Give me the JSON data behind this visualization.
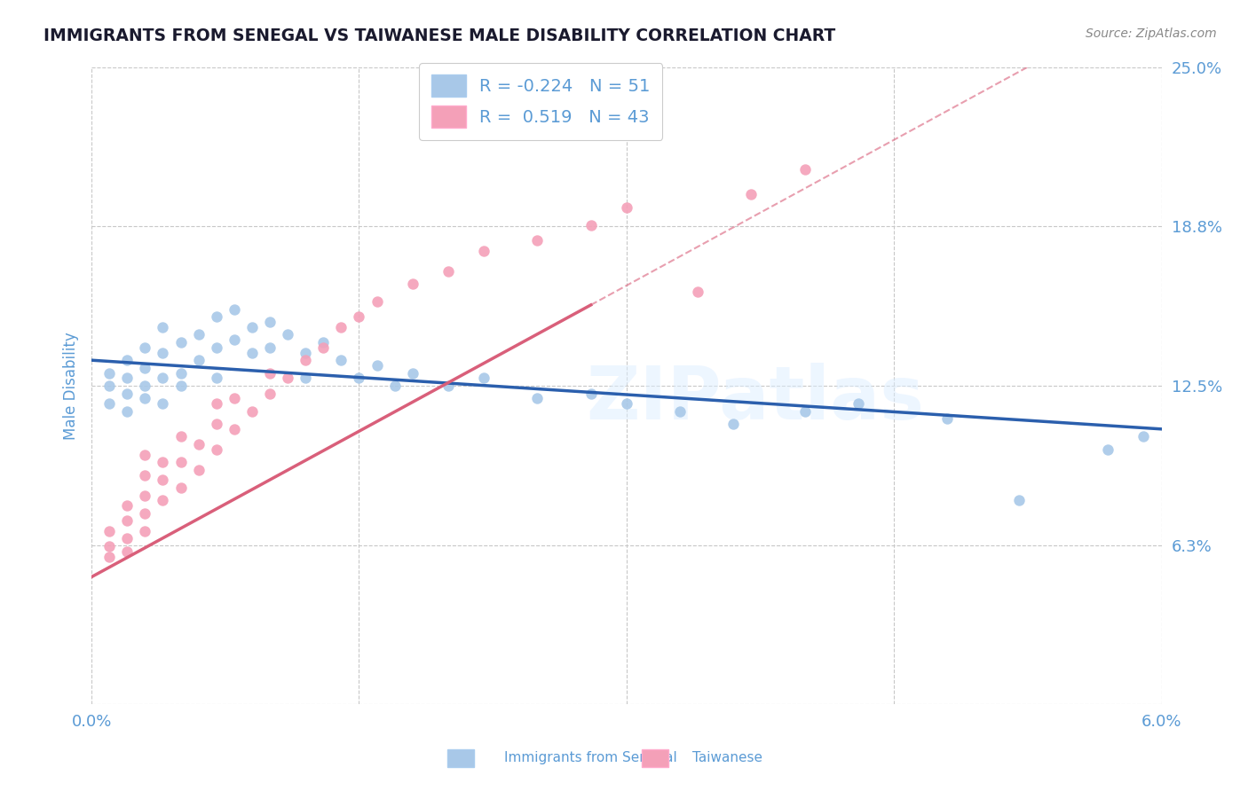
{
  "title": "IMMIGRANTS FROM SENEGAL VS TAIWANESE MALE DISABILITY CORRELATION CHART",
  "source": "Source: ZipAtlas.com",
  "ylabel": "Male Disability",
  "xlim": [
    0.0,
    0.06
  ],
  "ylim": [
    0.0,
    0.25
  ],
  "yticks": [
    0.0,
    0.0625,
    0.125,
    0.1875,
    0.25
  ],
  "ytick_labels": [
    "",
    "6.3%",
    "12.5%",
    "18.8%",
    "25.0%"
  ],
  "xticks": [
    0.0,
    0.015,
    0.03,
    0.045,
    0.06
  ],
  "xtick_labels": [
    "0.0%",
    "",
    "",
    "",
    "6.0%"
  ],
  "legend_R_blue": "-0.224",
  "legend_N_blue": "51",
  "legend_R_pink": "0.519",
  "legend_N_pink": "43",
  "legend_label_blue": "Immigrants from Senegal",
  "legend_label_pink": "Taiwanese",
  "blue_scatter_x": [
    0.001,
    0.001,
    0.001,
    0.002,
    0.002,
    0.002,
    0.002,
    0.003,
    0.003,
    0.003,
    0.003,
    0.004,
    0.004,
    0.004,
    0.004,
    0.005,
    0.005,
    0.005,
    0.006,
    0.006,
    0.007,
    0.007,
    0.007,
    0.008,
    0.008,
    0.009,
    0.009,
    0.01,
    0.01,
    0.011,
    0.012,
    0.012,
    0.013,
    0.014,
    0.015,
    0.016,
    0.017,
    0.018,
    0.02,
    0.022,
    0.025,
    0.028,
    0.03,
    0.033,
    0.036,
    0.04,
    0.043,
    0.048,
    0.052,
    0.057,
    0.059
  ],
  "blue_scatter_y": [
    0.125,
    0.118,
    0.13,
    0.122,
    0.115,
    0.128,
    0.135,
    0.12,
    0.132,
    0.125,
    0.14,
    0.118,
    0.128,
    0.138,
    0.148,
    0.13,
    0.142,
    0.125,
    0.145,
    0.135,
    0.152,
    0.14,
    0.128,
    0.155,
    0.143,
    0.148,
    0.138,
    0.15,
    0.14,
    0.145,
    0.138,
    0.128,
    0.142,
    0.135,
    0.128,
    0.133,
    0.125,
    0.13,
    0.125,
    0.128,
    0.12,
    0.122,
    0.118,
    0.115,
    0.11,
    0.115,
    0.118,
    0.112,
    0.08,
    0.1,
    0.105
  ],
  "pink_scatter_x": [
    0.001,
    0.001,
    0.001,
    0.002,
    0.002,
    0.002,
    0.002,
    0.003,
    0.003,
    0.003,
    0.003,
    0.003,
    0.004,
    0.004,
    0.004,
    0.005,
    0.005,
    0.005,
    0.006,
    0.006,
    0.007,
    0.007,
    0.007,
    0.008,
    0.008,
    0.009,
    0.01,
    0.01,
    0.011,
    0.012,
    0.013,
    0.014,
    0.015,
    0.016,
    0.018,
    0.02,
    0.022,
    0.025,
    0.028,
    0.03,
    0.034,
    0.037,
    0.04
  ],
  "pink_scatter_y": [
    0.062,
    0.058,
    0.068,
    0.06,
    0.072,
    0.065,
    0.078,
    0.068,
    0.075,
    0.082,
    0.09,
    0.098,
    0.08,
    0.088,
    0.095,
    0.085,
    0.095,
    0.105,
    0.092,
    0.102,
    0.1,
    0.11,
    0.118,
    0.108,
    0.12,
    0.115,
    0.122,
    0.13,
    0.128,
    0.135,
    0.14,
    0.148,
    0.152,
    0.158,
    0.165,
    0.17,
    0.178,
    0.182,
    0.188,
    0.195,
    0.162,
    0.2,
    0.21
  ],
  "watermark": "ZIPatlas",
  "title_color": "#1a1a2e",
  "source_color": "#888888",
  "tick_label_color": "#5b9bd5",
  "grid_color": "#c8c8c8",
  "blue_line_color": "#2b5fad",
  "pink_line_color": "#d95f7a",
  "scatter_blue": "#a8c8e8",
  "scatter_pink": "#f4a0b8",
  "legend_text_color": "#5b9bd5"
}
